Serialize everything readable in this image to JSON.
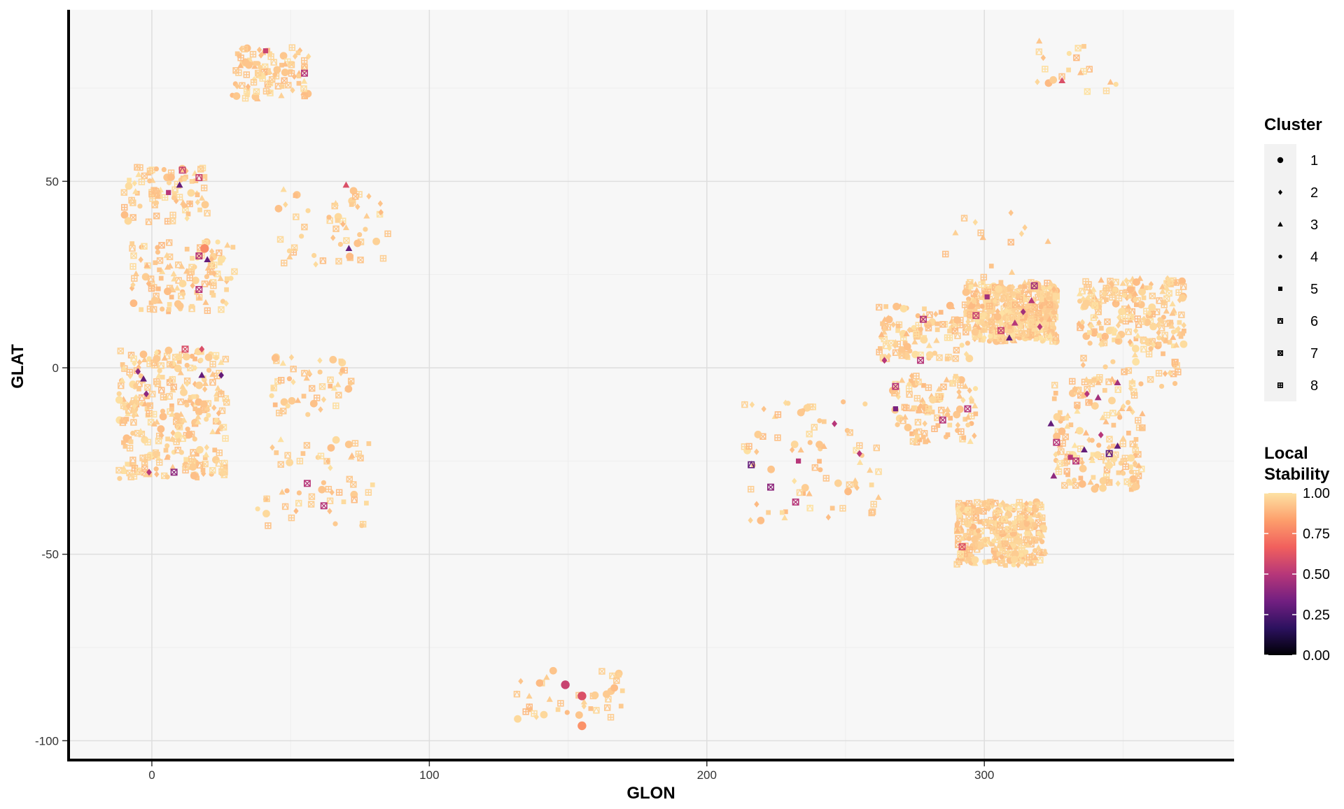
{
  "chart_data": {
    "type": "scatter",
    "title": "",
    "xlabel": "GLON",
    "ylabel": "GLAT",
    "xlim": [
      -30,
      390
    ],
    "ylim": [
      -105,
      96
    ],
    "x_ticks": [
      0,
      100,
      200,
      300
    ],
    "y_ticks": [
      -100,
      -50,
      0,
      50
    ],
    "grid": true,
    "legend_position": "right",
    "shape_legend": {
      "title": "Cluster",
      "entries": [
        "1",
        "2",
        "3",
        "4",
        "5",
        "6",
        "7",
        "8"
      ],
      "shapes": [
        "circle",
        "diamond",
        "triangle",
        "small-circle",
        "square",
        "square-triangle",
        "square-x",
        "square-plus"
      ]
    },
    "color_legend": {
      "title_lines": [
        "Local",
        "Stability"
      ],
      "ticks": [
        "1.00",
        "0.75",
        "0.50",
        "0.25",
        "0.00"
      ],
      "colormap": "magma",
      "stops": [
        "#000004",
        "#2c115f",
        "#721f81",
        "#b73779",
        "#f1605d",
        "#fd9f6c",
        "#fde2a4"
      ]
    },
    "groups": [
      {
        "x": [
          29,
          57
        ],
        "y": [
          72,
          86
        ],
        "n": 95
      },
      {
        "x": [
          -10,
          20
        ],
        "y": [
          39,
          54
        ],
        "n": 85
      },
      {
        "x": [
          -8,
          30
        ],
        "y": [
          15,
          34
        ],
        "n": 120
      },
      {
        "x": [
          -12,
          27
        ],
        "y": [
          -30,
          5
        ],
        "n": 310
      },
      {
        "x": [
          42,
          72
        ],
        "y": [
          -13,
          3
        ],
        "n": 50
      },
      {
        "x": [
          45,
          86
        ],
        "y": [
          27,
          49
        ],
        "n": 55
      },
      {
        "x": [
          38,
          80
        ],
        "y": [
          -43,
          -19
        ],
        "n": 55
      },
      {
        "x": [
          131,
          171
        ],
        "y": [
          -96,
          -81
        ],
        "n": 40
      },
      {
        "x": [
          213,
          262
        ],
        "y": [
          -41,
          -9
        ],
        "n": 75
      },
      {
        "x": [
          262,
          295
        ],
        "y": [
          2,
          17
        ],
        "n": 110
      },
      {
        "x": [
          267,
          297
        ],
        "y": [
          -20,
          -2
        ],
        "n": 110
      },
      {
        "x": [
          286,
          323
        ],
        "y": [
          24,
          43
        ],
        "n": 14
      },
      {
        "x": [
          293,
          326
        ],
        "y": [
          7,
          23
        ],
        "n": 450
      },
      {
        "x": [
          290,
          322
        ],
        "y": [
          -53,
          -36
        ],
        "n": 320
      },
      {
        "x": [
          319,
          350
        ],
        "y": [
          74,
          88
        ],
        "n": 20
      },
      {
        "x": [
          325,
          357
        ],
        "y": [
          -33,
          -3
        ],
        "n": 160
      },
      {
        "x": [
          335,
          371
        ],
        "y": [
          -5,
          8
        ],
        "n": 40
      },
      {
        "x": [
          334,
          372
        ],
        "y": [
          6,
          24
        ],
        "n": 210
      }
    ],
    "points": [
      {
        "x": 19,
        "y": 32,
        "cluster": 1,
        "stability": 0.78
      },
      {
        "x": 149,
        "y": -85,
        "cluster": 1,
        "stability": 0.55
      },
      {
        "x": 155,
        "y": -88,
        "cluster": 1,
        "stability": 0.6
      },
      {
        "x": 155,
        "y": -96,
        "cluster": 1,
        "stability": 0.8
      },
      {
        "x": 70,
        "y": 49,
        "cluster": 3,
        "stability": 0.6
      },
      {
        "x": 71,
        "y": 32,
        "cluster": 3,
        "stability": 0.3
      },
      {
        "x": 10,
        "y": 49,
        "cluster": 3,
        "stability": 0.3
      },
      {
        "x": 11,
        "y": 53,
        "cluster": 6,
        "stability": 0.55
      },
      {
        "x": 17,
        "y": 51,
        "cluster": 6,
        "stability": 0.55
      },
      {
        "x": 6,
        "y": 47,
        "cluster": 5,
        "stability": 0.5
      },
      {
        "x": 41,
        "y": 85,
        "cluster": 5,
        "stability": 0.55
      },
      {
        "x": 55,
        "y": 79,
        "cluster": 7,
        "stability": 0.5
      },
      {
        "x": 17,
        "y": 30,
        "cluster": 7,
        "stability": 0.5
      },
      {
        "x": 17,
        "y": 21,
        "cluster": 7,
        "stability": 0.5
      },
      {
        "x": 20,
        "y": 29,
        "cluster": 3,
        "stability": 0.3
      },
      {
        "x": 12,
        "y": 5,
        "cluster": 7,
        "stability": 0.6
      },
      {
        "x": 18,
        "y": 5,
        "cluster": 2,
        "stability": 0.6
      },
      {
        "x": -5,
        "y": -1,
        "cluster": 2,
        "stability": 0.4
      },
      {
        "x": -2,
        "y": -7,
        "cluster": 2,
        "stability": 0.4
      },
      {
        "x": -3,
        "y": -3,
        "cluster": 3,
        "stability": 0.3
      },
      {
        "x": 18,
        "y": -2,
        "cluster": 3,
        "stability": 0.3
      },
      {
        "x": 25,
        "y": -2,
        "cluster": 2,
        "stability": 0.3
      },
      {
        "x": 8,
        "y": -28,
        "cluster": 7,
        "stability": 0.4
      },
      {
        "x": -1,
        "y": -28,
        "cluster": 2,
        "stability": 0.5
      },
      {
        "x": 62,
        "y": -37,
        "cluster": 7,
        "stability": 0.5
      },
      {
        "x": 56,
        "y": -31,
        "cluster": 7,
        "stability": 0.5
      },
      {
        "x": 216,
        "y": -26,
        "cluster": 6,
        "stability": 0.3
      },
      {
        "x": 223,
        "y": -32,
        "cluster": 7,
        "stability": 0.4
      },
      {
        "x": 233,
        "y": -25,
        "cluster": 5,
        "stability": 0.5
      },
      {
        "x": 246,
        "y": -15,
        "cluster": 2,
        "stability": 0.5
      },
      {
        "x": 255,
        "y": -23,
        "cluster": 2,
        "stability": 0.5
      },
      {
        "x": 232,
        "y": -36,
        "cluster": 7,
        "stability": 0.5
      },
      {
        "x": 264,
        "y": 2,
        "cluster": 2,
        "stability": 0.5
      },
      {
        "x": 268,
        "y": -11,
        "cluster": 5,
        "stability": 0.35
      },
      {
        "x": 277,
        "y": 2,
        "cluster": 7,
        "stability": 0.5
      },
      {
        "x": 268,
        "y": -5,
        "cluster": 7,
        "stability": 0.5
      },
      {
        "x": 285,
        "y": -14,
        "cluster": 7,
        "stability": 0.5
      },
      {
        "x": 294,
        "y": -11,
        "cluster": 7,
        "stability": 0.5
      },
      {
        "x": 278,
        "y": 13,
        "cluster": 7,
        "stability": 0.5
      },
      {
        "x": 292,
        "y": -48,
        "cluster": 7,
        "stability": 0.6
      },
      {
        "x": 309,
        "y": 8,
        "cluster": 3,
        "stability": 0.3
      },
      {
        "x": 318,
        "y": 22,
        "cluster": 7,
        "stability": 0.45
      },
      {
        "x": 324,
        "y": -15,
        "cluster": 3,
        "stability": 0.3
      },
      {
        "x": 325,
        "y": -29,
        "cluster": 3,
        "stability": 0.4
      },
      {
        "x": 326,
        "y": -20,
        "cluster": 7,
        "stability": 0.5
      },
      {
        "x": 331,
        "y": -24,
        "cluster": 5,
        "stability": 0.5
      },
      {
        "x": 336,
        "y": -22,
        "cluster": 3,
        "stability": 0.3
      },
      {
        "x": 342,
        "y": -18,
        "cluster": 2,
        "stability": 0.5
      },
      {
        "x": 348,
        "y": -21,
        "cluster": 3,
        "stability": 0.3
      },
      {
        "x": 345,
        "y": -23,
        "cluster": 6,
        "stability": 0.3
      },
      {
        "x": 337,
        "y": -7,
        "cluster": 2,
        "stability": 0.5
      },
      {
        "x": 341,
        "y": -8,
        "cluster": 3,
        "stability": 0.45
      },
      {
        "x": 348,
        "y": -4,
        "cluster": 3,
        "stability": 0.45
      },
      {
        "x": 333,
        "y": -25,
        "cluster": 7,
        "stability": 0.5
      },
      {
        "x": 328,
        "y": 77,
        "cluster": 3,
        "stability": 0.6
      },
      {
        "x": 311,
        "y": 12,
        "cluster": 3,
        "stability": 0.5
      },
      {
        "x": 301,
        "y": 19,
        "cluster": 5,
        "stability": 0.45
      },
      {
        "x": 314,
        "y": 15,
        "cluster": 2,
        "stability": 0.45
      },
      {
        "x": 306,
        "y": 10,
        "cluster": 7,
        "stability": 0.55
      },
      {
        "x": 320,
        "y": 11,
        "cluster": 2,
        "stability": 0.5
      },
      {
        "x": 297,
        "y": 14,
        "cluster": 7,
        "stability": 0.55
      },
      {
        "x": 317,
        "y": 18,
        "cluster": 3,
        "stability": 0.5
      }
    ]
  }
}
